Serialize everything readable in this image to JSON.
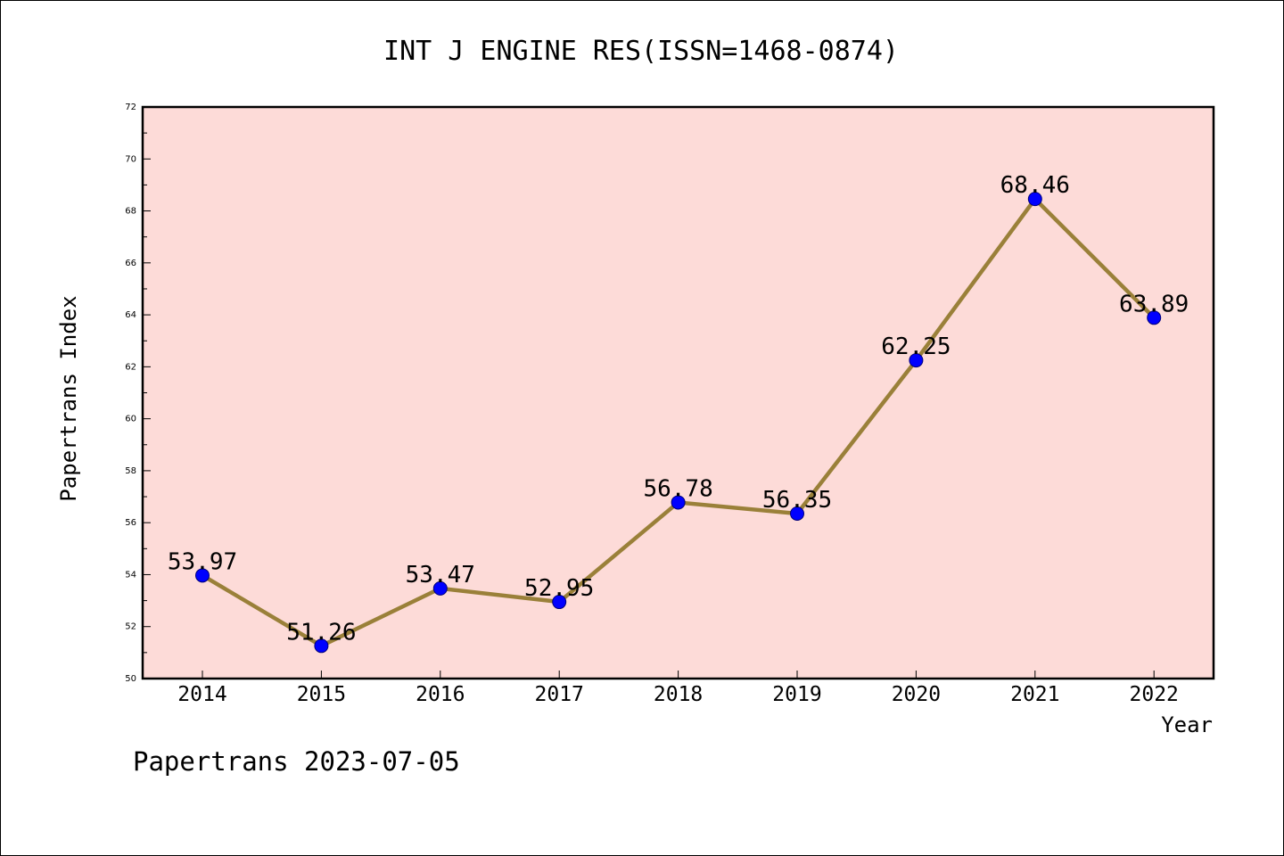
{
  "chart_data": {
    "type": "line",
    "title": "INT J ENGINE RES(ISSN=1468-0874)",
    "xlabel": "Year",
    "ylabel": "Papertrans Index",
    "categories": [
      "2014",
      "2015",
      "2016",
      "2017",
      "2018",
      "2019",
      "2020",
      "2021",
      "2022"
    ],
    "values": [
      53.97,
      51.26,
      53.47,
      52.95,
      56.78,
      56.35,
      62.25,
      68.46,
      63.89
    ],
    "data_labels": [
      "53.97",
      "51.26",
      "53.47",
      "52.95",
      "56.78",
      "56.35",
      "62.25",
      "68.46",
      "63.89"
    ],
    "ylim": [
      50,
      72
    ],
    "yticks": [
      50,
      52,
      54,
      56,
      58,
      60,
      62,
      64,
      66,
      68,
      70,
      72
    ],
    "ytick_labels": [
      "50",
      "52",
      "54",
      "56",
      "58",
      "60",
      "62",
      "64",
      "66",
      "68",
      "70",
      "72"
    ],
    "grid": false,
    "legend": "none",
    "colors": {
      "plot_background": "#fddbd8",
      "line": "#9a8039",
      "marker": "#0000ff",
      "axes": "#000000"
    }
  },
  "footer": {
    "text": "Papertrans 2023-07-05"
  }
}
